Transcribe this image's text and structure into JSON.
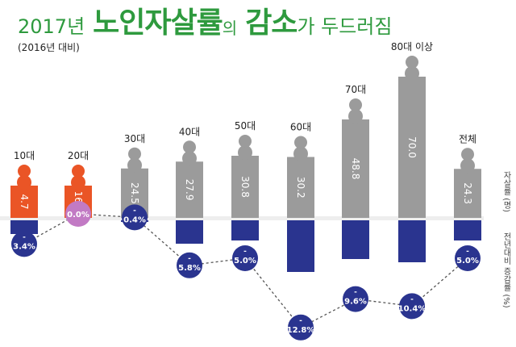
{
  "title": {
    "year": "2017년",
    "main": "노인자살률",
    "particle": "의",
    "key": "감소",
    "rest": "가 두드러짐"
  },
  "subtitle": "(2016년 대비)",
  "colors": {
    "young": "#ea5526",
    "old": "#9b9b9b",
    "change": "#2a348f",
    "zero": "#c27ac4",
    "title": "#2e9a3e"
  },
  "chart_data": {
    "type": "bar",
    "categories": [
      "10대",
      "20대",
      "30대",
      "40대",
      "50대",
      "60대",
      "70대",
      "80대 이상",
      "전체"
    ],
    "series": [
      {
        "name": "자살률 (명)",
        "values": [
          4.7,
          16.4,
          24.5,
          27.9,
          30.8,
          30.2,
          48.8,
          70.0,
          24.3
        ]
      },
      {
        "name": "전년대비 증감률 (%)",
        "values": [
          -3.4,
          0.0,
          -0.4,
          -5.8,
          -5.0,
          -12.8,
          -9.6,
          -10.4,
          -5.0
        ]
      }
    ],
    "rate_labels": [
      "4.7",
      "16.4",
      "24.5",
      "27.9",
      "30.8",
      "30.2",
      "48.8",
      "70.0",
      "24.3"
    ],
    "change_labels": [
      "3.4%",
      "0.0%",
      "0.4%",
      "5.8%",
      "5.0%",
      "12.8%",
      "9.6%",
      "10.4%",
      "5.0%"
    ],
    "axis_labels": {
      "rate": "자살률 (명)",
      "change": "전년대비 증감률 (%)"
    }
  }
}
